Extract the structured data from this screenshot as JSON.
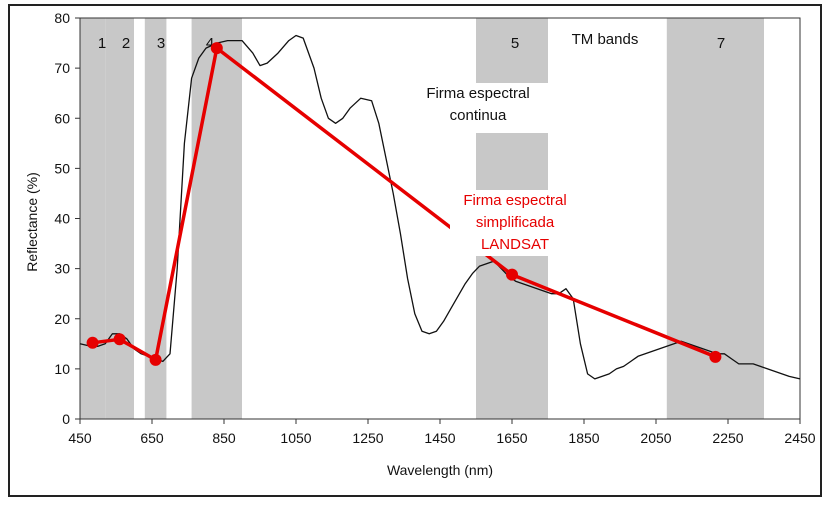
{
  "chart_data": {
    "type": "line",
    "xlabel": "Wavelength (nm)",
    "ylabel": "Reflectance (%)",
    "xlim": [
      450,
      2450
    ],
    "ylim": [
      0,
      80
    ],
    "xticks": [
      450,
      650,
      850,
      1050,
      1250,
      1450,
      1650,
      1850,
      2050,
      2250,
      2450
    ],
    "yticks": [
      0,
      10,
      20,
      30,
      40,
      50,
      60,
      70,
      80
    ],
    "grid": false,
    "band_set_label": "TM bands",
    "bands": [
      {
        "label": "1",
        "range": [
          450,
          520
        ]
      },
      {
        "label": "2",
        "range": [
          520,
          600
        ]
      },
      {
        "label": "3",
        "range": [
          630,
          690
        ]
      },
      {
        "label": "4",
        "range": [
          760,
          900
        ]
      },
      {
        "label": "5",
        "range": [
          1550,
          1750
        ]
      },
      {
        "label": "7",
        "range": [
          2080,
          2350
        ]
      }
    ],
    "series": [
      {
        "name": "Firma espectral continua",
        "color": "#111111",
        "x": [
          450,
          480,
          500,
          520,
          540,
          560,
          580,
          600,
          620,
          640,
          660,
          680,
          700,
          720,
          740,
          760,
          780,
          800,
          830,
          860,
          900,
          930,
          950,
          970,
          1000,
          1030,
          1050,
          1070,
          1100,
          1120,
          1140,
          1160,
          1180,
          1200,
          1230,
          1260,
          1280,
          1300,
          1320,
          1340,
          1360,
          1380,
          1400,
          1420,
          1440,
          1460,
          1480,
          1500,
          1520,
          1540,
          1560,
          1580,
          1600,
          1620,
          1640,
          1660,
          1680,
          1700,
          1720,
          1740,
          1760,
          1780,
          1800,
          1820,
          1840,
          1860,
          1880,
          1900,
          1920,
          1940,
          1960,
          1980,
          2000,
          2020,
          2040,
          2060,
          2080,
          2100,
          2120,
          2140,
          2160,
          2180,
          2200,
          2220,
          2240,
          2260,
          2280,
          2300,
          2320,
          2340,
          2360,
          2380,
          2400,
          2420,
          2450
        ],
        "y": [
          15,
          14.5,
          14.5,
          15,
          17,
          17,
          16,
          14,
          13,
          12.5,
          12,
          11.5,
          13,
          30,
          55,
          68,
          72,
          74,
          75,
          75.5,
          75.5,
          73,
          70.5,
          71,
          73,
          75.5,
          76.5,
          76,
          70,
          64,
          60,
          59,
          60,
          62,
          64,
          63.5,
          59,
          52,
          45,
          37,
          28,
          21,
          17.5,
          17,
          17.5,
          19.5,
          22,
          24.5,
          27,
          29,
          30.5,
          31,
          31.5,
          30,
          28.5,
          27.5,
          27,
          26.5,
          26,
          25.5,
          25,
          25,
          26,
          24,
          15,
          9,
          8,
          8.5,
          9,
          10,
          10.5,
          11.5,
          12.5,
          13,
          13.5,
          14,
          14.5,
          15,
          15.5,
          15,
          14.5,
          14,
          13.5,
          13,
          13,
          12,
          11,
          11,
          11,
          10.5,
          10,
          9.5,
          9,
          8.5,
          8
        ]
      },
      {
        "name": "Firma espectral simplificada LANDSAT",
        "color": "#e60000",
        "x": [
          485,
          560,
          660,
          830,
          1650,
          2215
        ],
        "y": [
          15.2,
          15.9,
          11.8,
          74,
          28.8,
          12.4
        ]
      }
    ],
    "annotations": [
      {
        "lines": [
          "Firma espectral",
          "continua"
        ],
        "color": "#111111"
      },
      {
        "lines": [
          "Firma espectral",
          "simplificada",
          "LANDSAT"
        ],
        "color": "#e60000"
      }
    ]
  }
}
